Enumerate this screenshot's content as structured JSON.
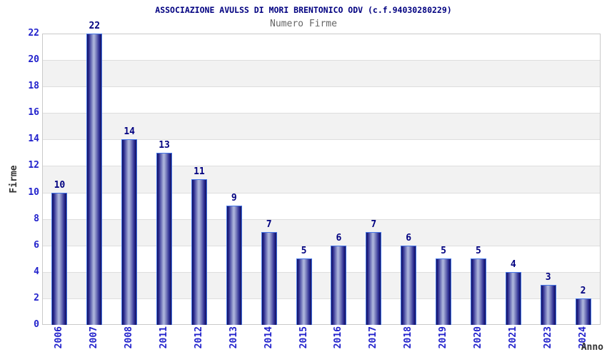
{
  "chart_data": {
    "type": "bar",
    "title": "ASSOCIAZIONE AVULSS DI MORI BRENTONICO ODV (c.f.94030280229)",
    "subtitle": "Numero Firme",
    "categories": [
      "2006",
      "2007",
      "2008",
      "2011",
      "2012",
      "2013",
      "2014",
      "2015",
      "2016",
      "2017",
      "2018",
      "2019",
      "2020",
      "2021",
      "2023",
      "2024"
    ],
    "values": [
      10,
      22,
      14,
      13,
      11,
      9,
      7,
      5,
      6,
      7,
      6,
      5,
      5,
      4,
      3,
      2
    ],
    "xlabel": "Anno",
    "ylabel": "Firme",
    "ylim": [
      0,
      22
    ],
    "yticks": [
      0,
      2,
      4,
      6,
      8,
      10,
      12,
      14,
      16,
      18,
      20,
      22
    ],
    "grid": "horizontal gridlines every 2 units with alternating gray/white bands",
    "legend_position": "none",
    "bar_value_labels_shown": true
  },
  "colors": {
    "title": "#000080",
    "subtitle": "#666666",
    "tick_label": "#2222cc",
    "value_label": "#000080",
    "axis_title": "#333333",
    "bar_dark": "#10105e",
    "bar_mid": "#2a2a90",
    "bar_light": "#aab2da",
    "bar_border": "#4575e6",
    "band_gray": "#f2f2f2",
    "gridline": "#dedede",
    "plot_border": "#c9c9c9",
    "background": "#ffffff"
  }
}
